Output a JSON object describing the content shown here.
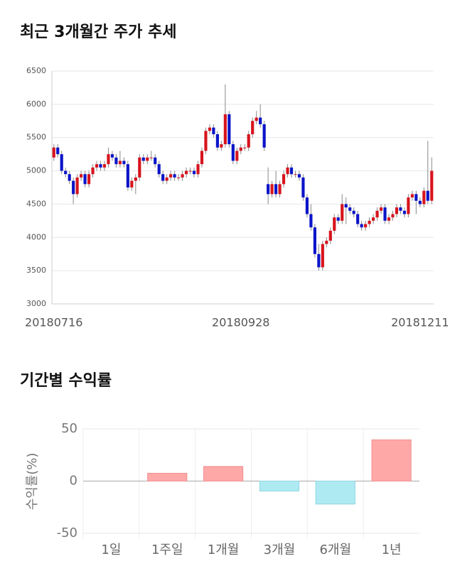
{
  "chart_data": [
    {
      "type": "candlestick",
      "title": "최근 3개월간 주가 추세",
      "categories": [
        "20180716",
        null,
        null,
        null,
        null,
        null,
        null,
        null,
        null,
        null,
        null,
        null,
        null,
        null,
        null,
        null,
        null,
        null,
        null,
        null,
        null,
        null,
        null,
        null,
        null,
        null,
        null,
        null,
        null,
        null,
        null,
        null,
        null,
        null,
        null,
        null,
        null,
        null,
        null,
        null,
        null,
        null,
        null,
        null,
        null,
        null,
        null,
        null,
        "20180928",
        null,
        null,
        null,
        null,
        null,
        null,
        null,
        null,
        null,
        null,
        null,
        null,
        null,
        null,
        null,
        null,
        null,
        null,
        null,
        null,
        null,
        null,
        null,
        null,
        null,
        null,
        null,
        null,
        null,
        null,
        null,
        null,
        null,
        null,
        null,
        null,
        null,
        null,
        null,
        null,
        null,
        null,
        null,
        null,
        null,
        "20181211",
        null,
        null,
        null
      ],
      "open": [
        5200,
        5350,
        5250,
        5000,
        4950,
        4850,
        4650,
        4900,
        4950,
        4800,
        4950,
        5050,
        5100,
        5050,
        5100,
        5250,
        5200,
        5100,
        5150,
        5100,
        4750,
        4850,
        4900,
        5200,
        5150,
        5200,
        5200,
        5100,
        4950,
        4850,
        4900,
        4950,
        4900,
        4900,
        4950,
        5000,
        5000,
        4950,
        5100,
        5300,
        5600,
        5650,
        5550,
        5350,
        5400,
        5850,
        5400,
        5150,
        5300,
        5350,
        5350,
        5550,
        5750,
        5800,
        5700,
        4800,
        4650,
        4800,
        4650,
        4800,
        4950,
        5050,
        4950,
        4950,
        4900,
        4600,
        4350,
        4150,
        3750,
        3550,
        3900,
        3950,
        4100,
        4300,
        4250,
        4500,
        4450,
        4400,
        4350,
        4200,
        4150,
        4200,
        4250,
        4300,
        4400,
        4450,
        4250,
        4300,
        4350,
        4450,
        4400,
        4350,
        4600,
        4650,
        4550,
        4500,
        4700,
        4550
      ],
      "high": [
        5400,
        5400,
        5300,
        5050,
        5000,
        4900,
        4950,
        5000,
        5000,
        5000,
        5100,
        5150,
        5150,
        5150,
        5350,
        5300,
        5250,
        5300,
        5200,
        5150,
        4900,
        4950,
        5250,
        5250,
        5250,
        5300,
        5250,
        5150,
        5000,
        4950,
        5000,
        5000,
        4950,
        5000,
        5050,
        5050,
        5050,
        5150,
        5350,
        5650,
        5700,
        5700,
        5600,
        5450,
        6300,
        5900,
        5450,
        5350,
        5400,
        5400,
        5600,
        5800,
        5900,
        6000,
        5750,
        5050,
        4850,
        5000,
        4850,
        5000,
        5100,
        5100,
        5000,
        5000,
        4950,
        4650,
        4500,
        4200,
        3900,
        3950,
        4000,
        4150,
        4350,
        4350,
        4650,
        4600,
        4500,
        4450,
        4400,
        4250,
        4250,
        4300,
        4350,
        4450,
        4500,
        4500,
        4350,
        4400,
        4500,
        4500,
        4450,
        4650,
        4700,
        4700,
        4600,
        4750,
        5450,
        5200
      ],
      "low": [
        5150,
        5200,
        4950,
        4900,
        4800,
        4500,
        4600,
        4850,
        4750,
        4750,
        4900,
        5000,
        5000,
        5000,
        5050,
        5150,
        5050,
        5050,
        5050,
        4700,
        4700,
        4650,
        4850,
        5100,
        5100,
        5150,
        5050,
        4900,
        4800,
        4800,
        4850,
        4850,
        4850,
        4850,
        4900,
        4950,
        4900,
        4900,
        5050,
        5250,
        5550,
        5500,
        5300,
        5300,
        5350,
        5350,
        5100,
        5100,
        5250,
        5300,
        5300,
        5500,
        5700,
        5650,
        5300,
        4500,
        4600,
        4600,
        4600,
        4750,
        4900,
        4900,
        4900,
        4850,
        4550,
        4300,
        4100,
        3700,
        3500,
        3500,
        3850,
        3900,
        4050,
        4200,
        4200,
        4200,
        4350,
        4300,
        4150,
        4100,
        4100,
        4150,
        4200,
        4250,
        4350,
        4200,
        4200,
        4250,
        4300,
        4350,
        4300,
        4300,
        4550,
        4350,
        4450,
        4450,
        4500,
        4500
      ],
      "close": [
        5350,
        5250,
        5000,
        4950,
        4850,
        4650,
        4900,
        4950,
        4800,
        4950,
        5050,
        5100,
        5050,
        5100,
        5250,
        5200,
        5100,
        5150,
        5100,
        4750,
        4850,
        4900,
        5200,
        5150,
        5200,
        5200,
        5100,
        4950,
        4850,
        4900,
        4950,
        4900,
        4900,
        4950,
        5000,
        5000,
        4950,
        5100,
        5300,
        5600,
        5650,
        5550,
        5350,
        5400,
        5850,
        5400,
        5150,
        5300,
        5350,
        5350,
        5550,
        5750,
        5800,
        5700,
        5350,
        4650,
        4800,
        4650,
        4800,
        4950,
        5050,
        4950,
        4950,
        4900,
        4600,
        4350,
        4150,
        3750,
        3550,
        3900,
        3950,
        4100,
        4300,
        4250,
        4500,
        4450,
        4400,
        4350,
        4200,
        4150,
        4200,
        4250,
        4300,
        4400,
        4450,
        4250,
        4300,
        4350,
        4450,
        4400,
        4350,
        4600,
        4650,
        4550,
        4500,
        4700,
        4550,
        5000
      ],
      "up_color": "#d7141e",
      "down_color": "#0a14c8",
      "ylim": [
        3000,
        6500
      ],
      "yticks": [
        3000,
        3500,
        4000,
        4500,
        5000,
        5500,
        6000,
        6500
      ],
      "grid": true
    },
    {
      "type": "bar",
      "title": "기간별 수익률",
      "ylabel": "수익률(%)",
      "categories": [
        "1일",
        "1주일",
        "1개월",
        "3개월",
        "6개월",
        "1년"
      ],
      "values": [
        0,
        7.5,
        14,
        -9.5,
        -22,
        39.5
      ],
      "positive_color": "#ffa8a8",
      "negative_color": "#aeeaf2",
      "ylim": [
        -50,
        50
      ],
      "yticks": [
        -50,
        0,
        50
      ],
      "grid": true
    }
  ]
}
